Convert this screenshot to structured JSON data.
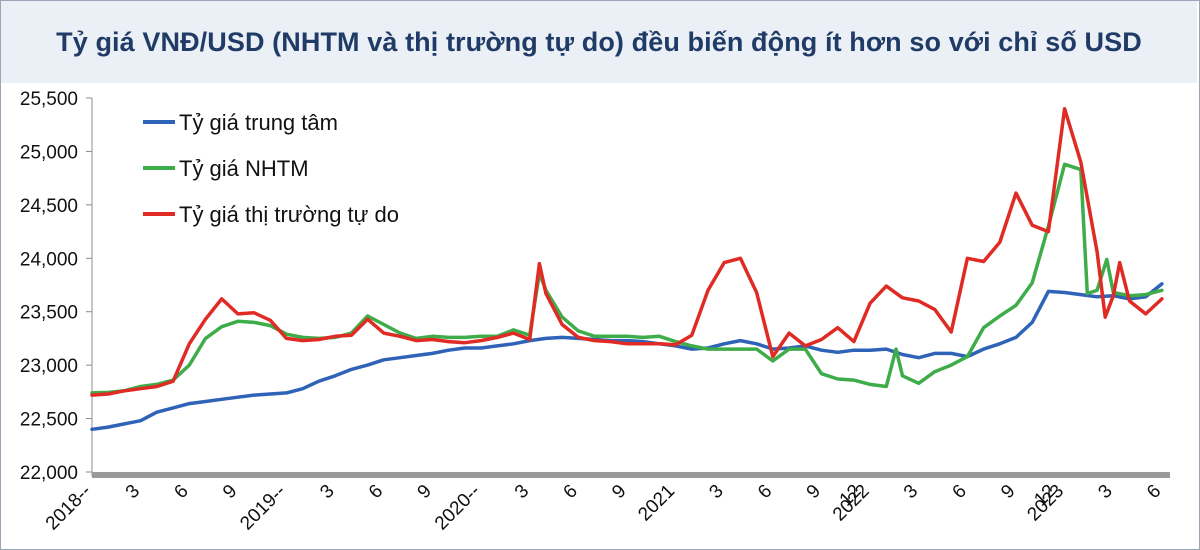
{
  "title": "Tỷ giá VNĐ/USD (NHTM và thị trường tự do) đều biến động ít hơn so với chỉ số USD",
  "chart_data": {
    "type": "line",
    "title": "Tỷ giá VNĐ/USD (NHTM và thị trường tự do) đều biến động ít hơn so với chỉ số USD",
    "ylim": [
      22000,
      25500
    ],
    "y_ticks": [
      22000,
      22500,
      23000,
      23500,
      24000,
      24500,
      25000,
      25500
    ],
    "y_tick_labels": [
      "22,000",
      "22,500",
      "23,000",
      "23,500",
      "24,000",
      "24,500",
      "25,000",
      "25,500"
    ],
    "x_unit": "month index from January 2018",
    "xlim": [
      0,
      66.5
    ],
    "x_ticks": [
      0,
      3,
      6,
      9,
      12,
      15,
      18,
      21,
      24,
      27,
      30,
      33,
      36,
      39,
      42,
      45,
      47.5,
      48,
      51,
      54,
      57,
      59.5,
      60,
      63,
      66
    ],
    "x_tick_labels": [
      "2018--",
      "3",
      "6",
      "9",
      "2019--",
      "3",
      "6",
      "9",
      "2020--",
      "3",
      "6",
      "9",
      "2021",
      "3",
      "6",
      "9",
      "12",
      "2022",
      "3",
      "6",
      "9",
      "12",
      "2023",
      "3",
      "6"
    ],
    "grid": false,
    "legend": "top-left",
    "series": [
      {
        "name": "Tỷ giá trung tâm",
        "color": "#2e63b8",
        "points": [
          [
            0,
            22400
          ],
          [
            1,
            22420
          ],
          [
            2,
            22450
          ],
          [
            3,
            22480
          ],
          [
            4,
            22560
          ],
          [
            5,
            22600
          ],
          [
            6,
            22640
          ],
          [
            7,
            22660
          ],
          [
            8,
            22680
          ],
          [
            9,
            22700
          ],
          [
            10,
            22720
          ],
          [
            11,
            22730
          ],
          [
            12,
            22740
          ],
          [
            13,
            22780
          ],
          [
            14,
            22850
          ],
          [
            15,
            22900
          ],
          [
            16,
            22960
          ],
          [
            17,
            23000
          ],
          [
            18,
            23050
          ],
          [
            19,
            23070
          ],
          [
            20,
            23090
          ],
          [
            21,
            23110
          ],
          [
            22,
            23140
          ],
          [
            23,
            23160
          ],
          [
            24,
            23160
          ],
          [
            25,
            23180
          ],
          [
            26,
            23200
          ],
          [
            27,
            23230
          ],
          [
            28,
            23250
          ],
          [
            29,
            23260
          ],
          [
            30,
            23250
          ],
          [
            31,
            23240
          ],
          [
            32,
            23230
          ],
          [
            33,
            23230
          ],
          [
            34,
            23220
          ],
          [
            35,
            23200
          ],
          [
            36,
            23180
          ],
          [
            37,
            23150
          ],
          [
            38,
            23160
          ],
          [
            39,
            23200
          ],
          [
            40,
            23230
          ],
          [
            41,
            23200
          ],
          [
            42,
            23150
          ],
          [
            43,
            23160
          ],
          [
            44,
            23180
          ],
          [
            45,
            23140
          ],
          [
            46,
            23120
          ],
          [
            47,
            23140
          ],
          [
            48,
            23140
          ],
          [
            49,
            23150
          ],
          [
            50,
            23100
          ],
          [
            51,
            23070
          ],
          [
            52,
            23110
          ],
          [
            53,
            23110
          ],
          [
            54,
            23080
          ],
          [
            55,
            23150
          ],
          [
            56,
            23200
          ],
          [
            57,
            23260
          ],
          [
            58,
            23400
          ],
          [
            59,
            23690
          ],
          [
            60,
            23680
          ],
          [
            61,
            23660
          ],
          [
            62,
            23640
          ],
          [
            63,
            23650
          ],
          [
            64,
            23620
          ],
          [
            65,
            23640
          ],
          [
            66,
            23760
          ]
        ]
      },
      {
        "name": "Tỷ giá NHTM",
        "color": "#3fac4a",
        "points": [
          [
            0,
            22740
          ],
          [
            1,
            22745
          ],
          [
            2,
            22760
          ],
          [
            3,
            22800
          ],
          [
            4,
            22820
          ],
          [
            5,
            22860
          ],
          [
            6,
            23000
          ],
          [
            7,
            23250
          ],
          [
            8,
            23360
          ],
          [
            9,
            23410
          ],
          [
            10,
            23400
          ],
          [
            11,
            23370
          ],
          [
            12,
            23290
          ],
          [
            13,
            23260
          ],
          [
            14,
            23250
          ],
          [
            15,
            23260
          ],
          [
            16,
            23300
          ],
          [
            17,
            23460
          ],
          [
            18,
            23380
          ],
          [
            19,
            23300
          ],
          [
            20,
            23250
          ],
          [
            21,
            23270
          ],
          [
            22,
            23260
          ],
          [
            23,
            23260
          ],
          [
            24,
            23270
          ],
          [
            25,
            23270
          ],
          [
            26,
            23330
          ],
          [
            27,
            23280
          ],
          [
            27.6,
            23860
          ],
          [
            28,
            23700
          ],
          [
            29,
            23450
          ],
          [
            30,
            23320
          ],
          [
            31,
            23270
          ],
          [
            32,
            23270
          ],
          [
            33,
            23270
          ],
          [
            34,
            23260
          ],
          [
            35,
            23270
          ],
          [
            36,
            23220
          ],
          [
            37,
            23180
          ],
          [
            38,
            23150
          ],
          [
            39,
            23150
          ],
          [
            40,
            23150
          ],
          [
            41,
            23150
          ],
          [
            42,
            23040
          ],
          [
            43,
            23150
          ],
          [
            44,
            23150
          ],
          [
            45,
            22920
          ],
          [
            46,
            22870
          ],
          [
            47,
            22860
          ],
          [
            48,
            22820
          ],
          [
            49,
            22800
          ],
          [
            49.6,
            23150
          ],
          [
            50,
            22900
          ],
          [
            51,
            22830
          ],
          [
            52,
            22940
          ],
          [
            53,
            23000
          ],
          [
            54,
            23080
          ],
          [
            55,
            23350
          ],
          [
            56,
            23460
          ],
          [
            57,
            23560
          ],
          [
            58,
            23770
          ],
          [
            59,
            24300
          ],
          [
            60,
            24880
          ],
          [
            61,
            24830
          ],
          [
            61.4,
            23670
          ],
          [
            62,
            23700
          ],
          [
            62.6,
            23990
          ],
          [
            63,
            23680
          ],
          [
            64,
            23650
          ],
          [
            65,
            23660
          ],
          [
            66,
            23700
          ]
        ]
      },
      {
        "name": "Tỷ giá thị trường tự do",
        "color": "#e02b25",
        "points": [
          [
            0,
            22720
          ],
          [
            1,
            22730
          ],
          [
            2,
            22760
          ],
          [
            3,
            22780
          ],
          [
            4,
            22800
          ],
          [
            5,
            22850
          ],
          [
            6,
            23200
          ],
          [
            7,
            23430
          ],
          [
            8,
            23620
          ],
          [
            9,
            23480
          ],
          [
            10,
            23490
          ],
          [
            11,
            23420
          ],
          [
            12,
            23250
          ],
          [
            13,
            23230
          ],
          [
            14,
            23240
          ],
          [
            15,
            23270
          ],
          [
            16,
            23280
          ],
          [
            17,
            23430
          ],
          [
            18,
            23300
          ],
          [
            19,
            23270
          ],
          [
            20,
            23230
          ],
          [
            21,
            23240
          ],
          [
            22,
            23220
          ],
          [
            23,
            23210
          ],
          [
            24,
            23230
          ],
          [
            25,
            23260
          ],
          [
            26,
            23300
          ],
          [
            27,
            23240
          ],
          [
            27.6,
            23950
          ],
          [
            28,
            23670
          ],
          [
            29,
            23380
          ],
          [
            30,
            23260
          ],
          [
            31,
            23230
          ],
          [
            32,
            23220
          ],
          [
            33,
            23200
          ],
          [
            34,
            23200
          ],
          [
            35,
            23200
          ],
          [
            36,
            23190
          ],
          [
            37,
            23280
          ],
          [
            38,
            23700
          ],
          [
            39,
            23960
          ],
          [
            40,
            24000
          ],
          [
            41,
            23680
          ],
          [
            42,
            23080
          ],
          [
            43,
            23300
          ],
          [
            44,
            23180
          ],
          [
            45,
            23240
          ],
          [
            46,
            23350
          ],
          [
            47,
            23220
          ],
          [
            48,
            23580
          ],
          [
            49,
            23740
          ],
          [
            50,
            23630
          ],
          [
            51,
            23600
          ],
          [
            52,
            23520
          ],
          [
            53,
            23310
          ],
          [
            54,
            24000
          ],
          [
            55,
            23970
          ],
          [
            56,
            24150
          ],
          [
            57,
            24610
          ],
          [
            58,
            24310
          ],
          [
            59,
            24250
          ],
          [
            60,
            25400
          ],
          [
            61,
            24900
          ],
          [
            62,
            24060
          ],
          [
            62.5,
            23450
          ],
          [
            63,
            23650
          ],
          [
            63.4,
            23960
          ],
          [
            64,
            23600
          ],
          [
            65,
            23480
          ],
          [
            66,
            23620
          ]
        ]
      }
    ]
  }
}
